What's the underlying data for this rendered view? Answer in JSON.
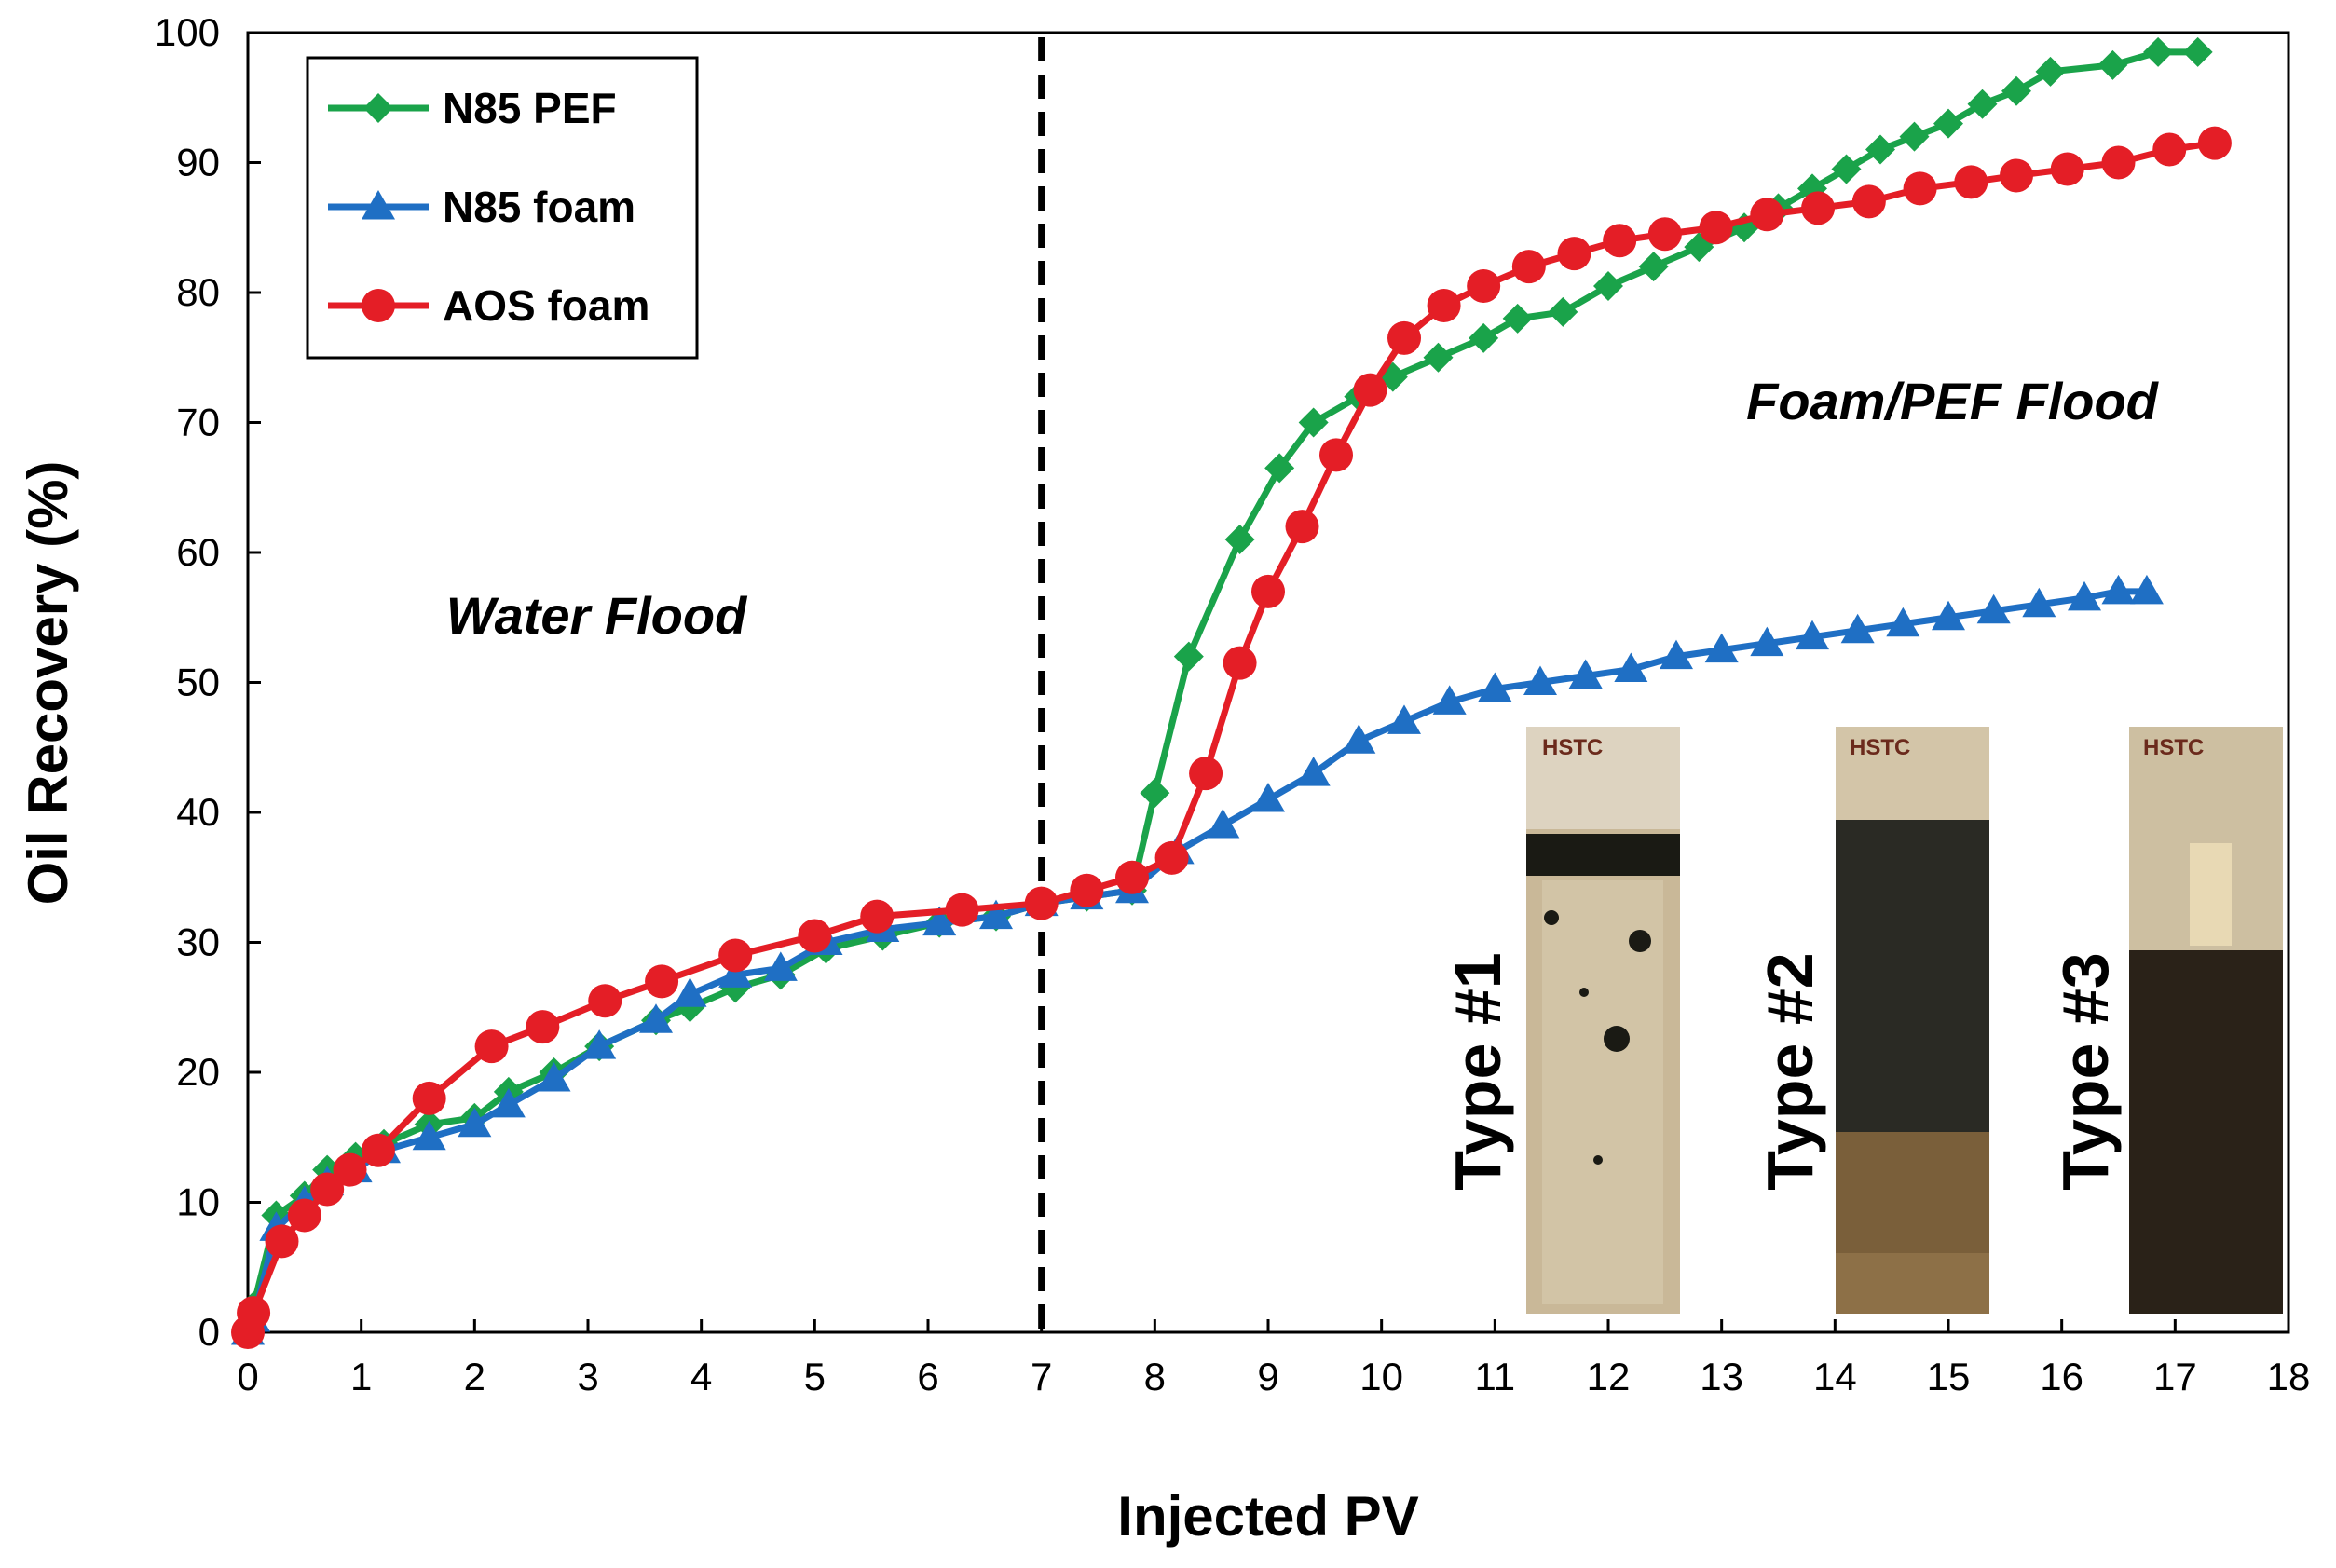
{
  "chart_data": {
    "type": "line",
    "title": "",
    "xlabel": "Injected PV",
    "ylabel": "Oil Recovery (%)",
    "xlim": [
      0,
      18
    ],
    "ylim": [
      0,
      100
    ],
    "xticks": [
      0,
      1,
      2,
      3,
      4,
      5,
      6,
      7,
      8,
      9,
      10,
      11,
      12,
      13,
      14,
      15,
      16,
      17,
      18
    ],
    "yticks": [
      0,
      10,
      20,
      30,
      40,
      50,
      60,
      70,
      80,
      90,
      100
    ],
    "grid": false,
    "legend_position": "top-left",
    "series": [
      {
        "name": "N85 PEF",
        "color": "#1aa34a",
        "marker": "diamond",
        "x": [
          0,
          0.05,
          0.25,
          0.5,
          0.7,
          0.95,
          1.2,
          1.6,
          2.0,
          2.3,
          2.7,
          3.1,
          3.6,
          3.9,
          4.3,
          4.7,
          5.1,
          5.6,
          6.1,
          6.6,
          7.0,
          7.4,
          7.8,
          8.0,
          8.3,
          8.75,
          9.1,
          9.4,
          9.8,
          10.1,
          10.5,
          10.9,
          11.2,
          11.6,
          12.0,
          12.4,
          12.8,
          13.2,
          13.5,
          13.8,
          14.1,
          14.4,
          14.7,
          15.0,
          15.3,
          15.6,
          15.9,
          16.45,
          16.85,
          17.2
        ],
        "y": [
          0,
          2,
          9,
          10.5,
          12.5,
          13.5,
          14.5,
          16,
          16.5,
          18.5,
          20,
          22,
          24,
          25,
          26.5,
          27.5,
          29.5,
          30.5,
          31.5,
          32,
          33,
          33.5,
          34,
          41.5,
          52,
          61,
          66.5,
          70,
          72,
          73.5,
          75,
          76.5,
          78,
          78.5,
          80.5,
          82,
          83.5,
          85,
          86.5,
          88,
          89.5,
          91,
          92,
          93,
          94.5,
          95.5,
          97,
          97.5,
          98.5,
          98.5
        ]
      },
      {
        "name": "N85 foam",
        "color": "#1f6fc4",
        "marker": "triangle",
        "x": [
          0,
          0.05,
          0.25,
          0.5,
          0.7,
          0.95,
          1.2,
          1.6,
          2.0,
          2.3,
          2.7,
          3.1,
          3.6,
          3.9,
          4.3,
          4.7,
          5.1,
          5.6,
          6.1,
          6.6,
          7.0,
          7.4,
          7.8,
          8.2,
          8.6,
          9.0,
          9.4,
          9.8,
          10.2,
          10.6,
          11.0,
          11.4,
          11.8,
          12.2,
          12.6,
          13.0,
          13.4,
          13.8,
          14.2,
          14.6,
          15.0,
          15.4,
          15.8,
          16.2,
          16.5,
          16.75
        ],
        "y": [
          0,
          1,
          8,
          10,
          11.5,
          12.5,
          14,
          15,
          16,
          17.5,
          19.5,
          22,
          24,
          26,
          27.5,
          28,
          30,
          31,
          31.5,
          32,
          33,
          33.5,
          34,
          37,
          39,
          41,
          43,
          45.5,
          47,
          48.5,
          49.5,
          50,
          50.5,
          51,
          52,
          52.5,
          53,
          53.5,
          54,
          54.5,
          55,
          55.5,
          56,
          56.5,
          57,
          57
        ]
      },
      {
        "name": "AOS foam",
        "color": "#e41e26",
        "marker": "circle",
        "x": [
          0,
          0.05,
          0.3,
          0.5,
          0.7,
          0.9,
          1.15,
          1.6,
          2.15,
          2.6,
          3.15,
          3.65,
          4.3,
          5.0,
          5.55,
          6.3,
          7.0,
          7.4,
          7.8,
          8.15,
          8.45,
          8.75,
          9.0,
          9.3,
          9.6,
          9.9,
          10.2,
          10.55,
          10.9,
          11.3,
          11.7,
          12.1,
          12.5,
          12.95,
          13.4,
          13.85,
          14.3,
          14.75,
          15.2,
          15.6,
          16.05,
          16.5,
          16.95,
          17.35
        ],
        "y": [
          0,
          1.5,
          7,
          9,
          11,
          12.5,
          14,
          18,
          22,
          23.5,
          25.5,
          27,
          29,
          30.5,
          32,
          32.5,
          33,
          34,
          35,
          36.5,
          43,
          51.5,
          57,
          62,
          67.5,
          72.5,
          76.5,
          79,
          80.5,
          82,
          83,
          84,
          84.5,
          85,
          86,
          86.5,
          87,
          88,
          88.5,
          89,
          89.5,
          90,
          91,
          91.5
        ]
      }
    ],
    "annotations": [
      {
        "text": "Water Flood",
        "x": 3.1,
        "y": 55
      },
      {
        "text": "Foam/PEF Flood",
        "x": 14.0,
        "y": 71
      },
      {
        "text": "Type #1",
        "x": 10.75,
        "y": 21
      },
      {
        "text": "Type #2",
        "x": 13.5,
        "y": 21
      },
      {
        "text": "Type #3",
        "x": 16.1,
        "y": 21
      }
    ],
    "vertical_line": {
      "x": 7,
      "style": "dashed",
      "color": "#000000"
    }
  },
  "legend": {
    "items": [
      {
        "label": "N85 PEF"
      },
      {
        "label": "N85 foam"
      },
      {
        "label": "AOS foam"
      }
    ]
  }
}
